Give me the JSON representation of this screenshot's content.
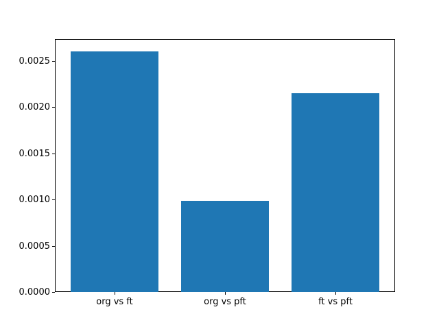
{
  "figure": {
    "background": "#ffffff"
  },
  "chart_data": {
    "type": "bar",
    "categories": [
      "org vs ft",
      "org vs pft",
      "ft vs pft"
    ],
    "values": [
      0.0026,
      0.00099,
      0.00215
    ],
    "title": "",
    "xlabel": "",
    "ylabel": "",
    "ylim": [
      0,
      0.002737
    ],
    "xlim": [
      -0.54,
      2.54
    ],
    "bar_positions": [
      0,
      1,
      2
    ],
    "bar_width": 0.8,
    "yticks": [
      0.0,
      0.0005,
      0.001,
      0.0015,
      0.002,
      0.0025
    ],
    "ytick_labels": [
      "0.0000",
      "0.0005",
      "0.0010",
      "0.0015",
      "0.0020",
      "0.0025"
    ],
    "bar_color": "#1f77b4",
    "axis_color": "#000000",
    "background": "#ffffff",
    "grid": false,
    "legend": null
  }
}
